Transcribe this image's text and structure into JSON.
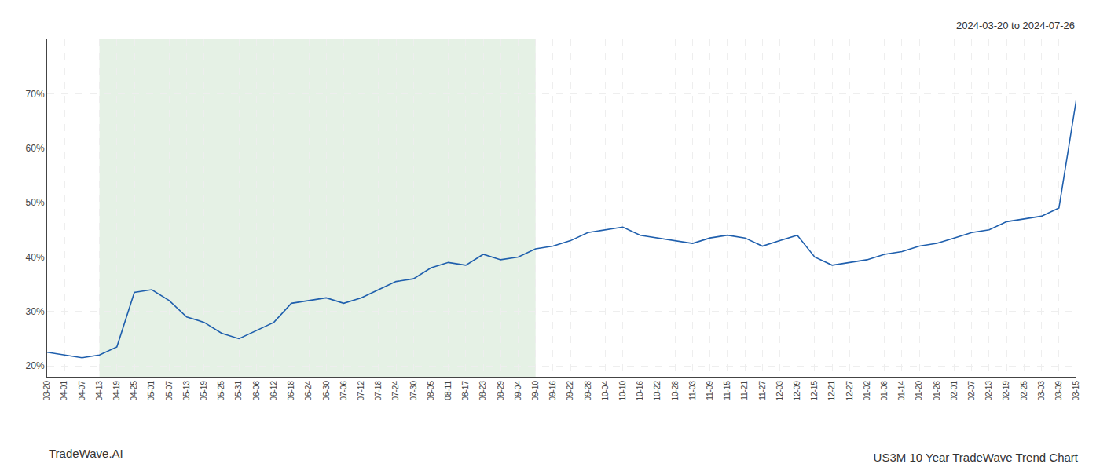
{
  "chart_data": {
    "type": "line",
    "title": "US3M 10 Year TradeWave Trend Chart",
    "subtitle": "2024-03-20 to 2024-07-26",
    "annotations": [
      "TradeWave.AI"
    ],
    "categories": [
      "03-20",
      "04-01",
      "04-07",
      "04-13",
      "04-19",
      "04-25",
      "05-01",
      "05-07",
      "05-13",
      "05-19",
      "05-25",
      "05-31",
      "06-06",
      "06-12",
      "06-18",
      "06-24",
      "06-30",
      "07-06",
      "07-12",
      "07-18",
      "07-24",
      "07-30",
      "08-05",
      "08-11",
      "08-17",
      "08-23",
      "08-29",
      "09-04",
      "09-10",
      "09-16",
      "09-22",
      "09-28",
      "10-04",
      "10-10",
      "10-16",
      "10-22",
      "10-28",
      "11-03",
      "11-09",
      "11-15",
      "11-21",
      "11-27",
      "12-03",
      "12-09",
      "12-15",
      "12-21",
      "12-27",
      "01-02",
      "01-08",
      "01-14",
      "01-20",
      "01-26",
      "02-01",
      "02-07",
      "02-13",
      "02-19",
      "02-25",
      "03-03",
      "03-09",
      "03-15"
    ],
    "values": [
      22.5,
      22.0,
      21.5,
      22.0,
      23.5,
      33.5,
      34.0,
      32.0,
      29.0,
      28.0,
      26.0,
      25.0,
      26.5,
      28.0,
      31.5,
      32.0,
      32.5,
      31.5,
      32.5,
      34.0,
      35.5,
      36.0,
      38.0,
      39.0,
      38.5,
      40.5,
      39.5,
      40.0,
      41.5,
      42.0,
      43.0,
      44.5,
      45.0,
      45.5,
      44.0,
      43.5,
      43.0,
      42.5,
      43.5,
      44.0,
      43.5,
      42.0,
      43.0,
      44.0,
      40.0,
      38.5,
      39.0,
      39.5,
      40.5,
      41.0,
      42.0,
      42.5,
      43.5,
      44.5,
      45.0,
      46.5,
      47.0,
      47.5,
      49.0,
      69.0
    ],
    "color": "#1f5fad",
    "shaded_region": {
      "start": "04-13",
      "end": "09-10",
      "color": "#d4e8d4"
    },
    "ylim": [
      18,
      80
    ],
    "yticks": [
      {
        "value": 20,
        "label": "20%"
      },
      {
        "value": 30,
        "label": "30%"
      },
      {
        "value": 40,
        "label": "40%"
      },
      {
        "value": 50,
        "label": "50%"
      },
      {
        "value": 60,
        "label": "60%"
      },
      {
        "value": 70,
        "label": "70%"
      }
    ],
    "grid": true
  }
}
